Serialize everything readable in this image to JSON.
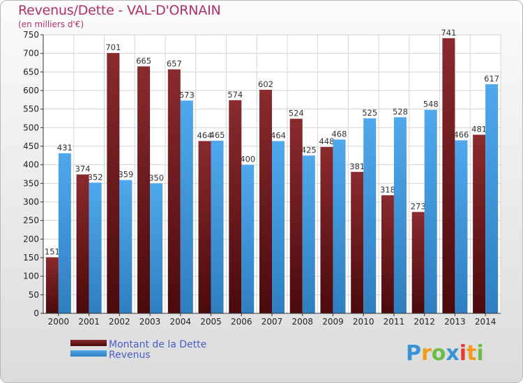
{
  "colors": {
    "debt": "#7a1f23",
    "revenue": "#3d9be4",
    "title": "#b0306a",
    "legend_text": "#4a5cc8"
  },
  "brand": {
    "letters": [
      "P",
      "r",
      "o",
      "x",
      "i",
      "t",
      "i"
    ],
    "colors": [
      "#3a93d6",
      "#f29a1c",
      "#6cbd45",
      "#3a93d6",
      "#e63b2e",
      "#f29a1c",
      "#6cbd45"
    ]
  },
  "chart_data": {
    "type": "bar",
    "title": "Revenus/Dette - VAL-D'ORNAIN",
    "subtitle": "(en milliers d'€)",
    "categories": [
      "2000",
      "2001",
      "2002",
      "2003",
      "2004",
      "2005",
      "2006",
      "2007",
      "2008",
      "2009",
      "2010",
      "2011",
      "2012",
      "2013",
      "2014"
    ],
    "series": [
      {
        "name": "Montant de la Dette",
        "values": [
          151,
          374,
          701,
          665,
          657,
          464,
          574,
          602,
          524,
          448,
          381,
          318,
          273,
          741,
          481
        ]
      },
      {
        "name": "Revenus",
        "values": [
          431,
          352,
          359,
          350,
          573,
          465,
          400,
          464,
          425,
          468,
          525,
          528,
          548,
          466,
          617
        ]
      }
    ],
    "ylim": [
      0,
      750
    ],
    "yticks": [
      0,
      50,
      100,
      150,
      200,
      250,
      300,
      350,
      400,
      450,
      500,
      550,
      600,
      650,
      700,
      750
    ],
    "grid": true,
    "legend_position": "bottom-left"
  }
}
